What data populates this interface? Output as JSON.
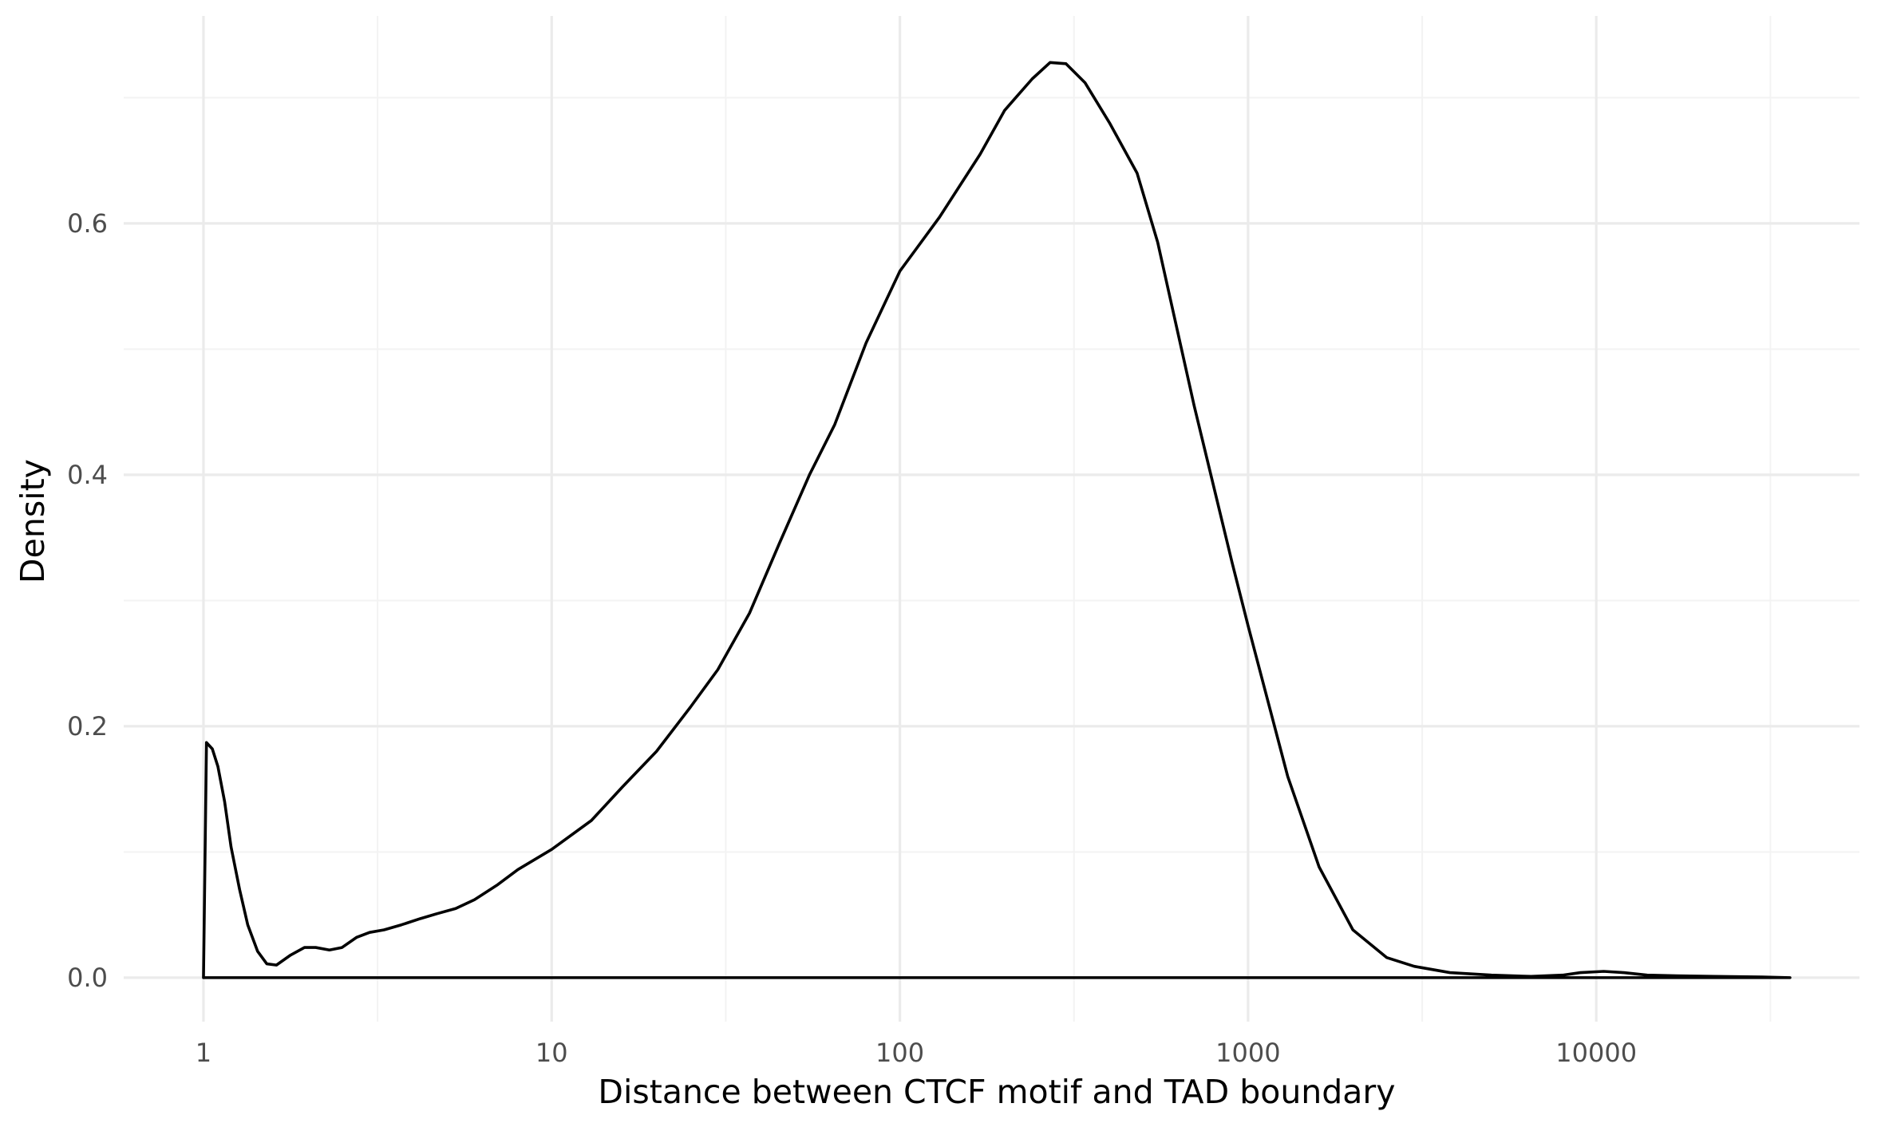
{
  "chart_data": {
    "type": "line",
    "title": "",
    "xlabel": "Distance between CTCF motif and TAD boundary",
    "ylabel": "Density",
    "x_scale": "log10",
    "xlim": [
      0.59,
      57000
    ],
    "ylim": [
      -0.035,
      0.765
    ],
    "x_ticks": [
      1,
      10,
      100,
      1000,
      10000
    ],
    "x_tick_labels": [
      "1",
      "10",
      "100",
      "1000",
      "10000"
    ],
    "y_ticks": [
      0.0,
      0.2,
      0.4,
      0.6
    ],
    "y_tick_labels": [
      "0.0",
      "0.2",
      "0.4",
      "0.6"
    ],
    "grid": true,
    "legend": "none",
    "line_color": "#000000",
    "series": [
      {
        "x": [
          1,
          1.02,
          1.06,
          1.1,
          1.15,
          1.2,
          1.27,
          1.34,
          1.43,
          1.52,
          1.62,
          1.78,
          1.95,
          2.1,
          2.3,
          2.5,
          2.75,
          3.0,
          3.3,
          3.7,
          4.2,
          4.7,
          5.3,
          6.0,
          7.0,
          8.0,
          10,
          13,
          16,
          20,
          25,
          30,
          37,
          45,
          55,
          65,
          80,
          100,
          130,
          170,
          200,
          240,
          270,
          300,
          340,
          400,
          480,
          550,
          700,
          900,
          1000,
          1300,
          1600,
          2000,
          2500,
          3000,
          3800,
          5000,
          6500,
          8000,
          9000,
          10500,
          12000,
          14000,
          17000,
          22000,
          30000,
          36000
        ],
        "y": [
          0.0,
          0.187,
          0.182,
          0.168,
          0.14,
          0.104,
          0.07,
          0.042,
          0.021,
          0.011,
          0.01,
          0.018,
          0.024,
          0.024,
          0.022,
          0.024,
          0.032,
          0.036,
          0.038,
          0.042,
          0.047,
          0.051,
          0.055,
          0.062,
          0.074,
          0.086,
          0.102,
          0.125,
          0.152,
          0.18,
          0.215,
          0.245,
          0.29,
          0.345,
          0.4,
          0.44,
          0.505,
          0.562,
          0.605,
          0.655,
          0.69,
          0.715,
          0.728,
          0.727,
          0.712,
          0.68,
          0.64,
          0.585,
          0.455,
          0.33,
          0.28,
          0.16,
          0.088,
          0.038,
          0.016,
          0.009,
          0.004,
          0.002,
          0.001,
          0.002,
          0.004,
          0.005,
          0.004,
          0.002,
          0.0015,
          0.001,
          0.0005,
          0.0
        ]
      }
    ]
  }
}
